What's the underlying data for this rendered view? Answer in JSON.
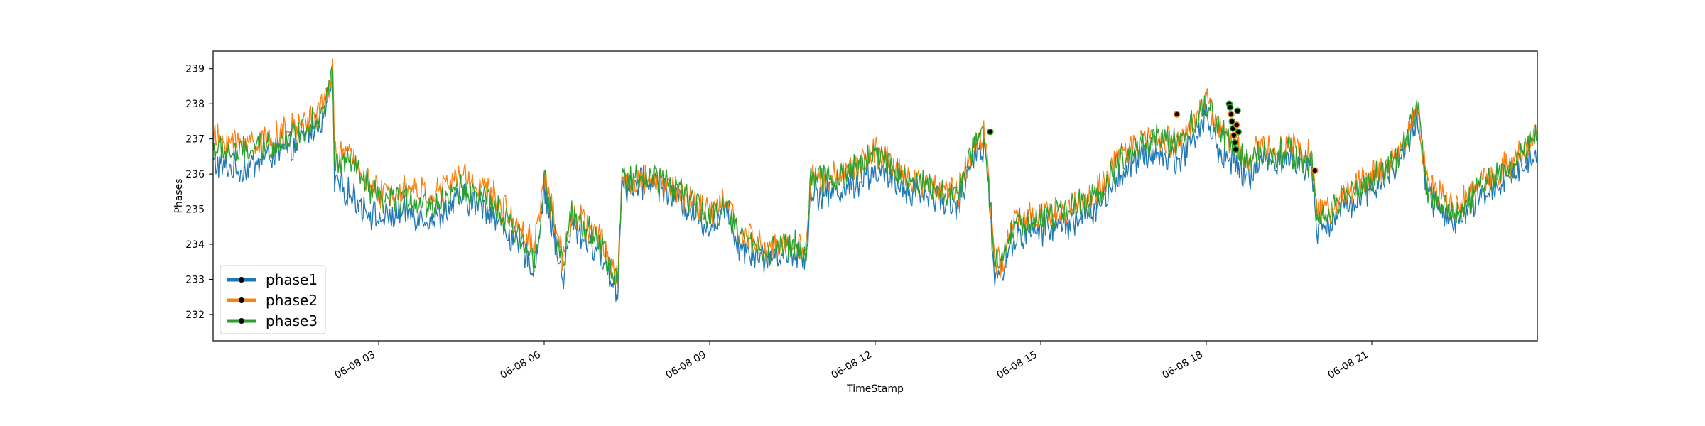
{
  "chart_data": {
    "type": "line",
    "xlabel": "TimeStamp",
    "ylabel": "Phases",
    "xlim": [
      "2023-06-08T00:00",
      "2023-06-09T00:00"
    ],
    "ylim": [
      231.25,
      239.5
    ],
    "yticks": [
      232,
      233,
      234,
      235,
      236,
      237,
      238,
      239
    ],
    "xticks": [
      {
        "t": "2023-06-08T03:00",
        "label": "06-08 03"
      },
      {
        "t": "2023-06-08T06:00",
        "label": "06-08 06"
      },
      {
        "t": "2023-06-08T09:00",
        "label": "06-08 09"
      },
      {
        "t": "2023-06-08T12:00",
        "label": "06-08 12"
      },
      {
        "t": "2023-06-08T15:00",
        "label": "06-08 15"
      },
      {
        "t": "2023-06-08T18:00",
        "label": "06-08 18"
      },
      {
        "t": "2023-06-08T21:00",
        "label": "06-08 21"
      }
    ],
    "grid": false,
    "legend_position": "lower-left",
    "series": [
      {
        "name": "phase1",
        "color": "#1f77b4",
        "x": [
          "00:00",
          "00:30",
          "01:00",
          "01:30",
          "02:00",
          "02:10",
          "02:12",
          "02:30",
          "03:00",
          "03:30",
          "04:00",
          "04:30",
          "05:00",
          "05:30",
          "05:50",
          "06:00",
          "06:20",
          "06:30",
          "07:00",
          "07:20",
          "07:25",
          "07:30",
          "08:00",
          "08:30",
          "09:00",
          "09:20",
          "09:30",
          "10:00",
          "10:30",
          "10:45",
          "10:50",
          "11:00",
          "11:30",
          "12:00",
          "12:30",
          "13:00",
          "13:30",
          "13:50",
          "14:00",
          "14:10",
          "14:20",
          "14:30",
          "15:00",
          "15:30",
          "16:00",
          "16:30",
          "17:00",
          "17:30",
          "18:00",
          "18:15",
          "18:30",
          "18:45",
          "19:00",
          "19:30",
          "19:55",
          "20:00",
          "20:15",
          "20:30",
          "21:00",
          "21:30",
          "21:50",
          "22:00",
          "22:30",
          "23:00",
          "23:30",
          "23:59"
        ],
        "y": [
          236.3,
          236.1,
          236.5,
          236.8,
          237.6,
          238.7,
          235.8,
          235.4,
          234.7,
          234.9,
          234.7,
          235.3,
          235.0,
          234.0,
          233.3,
          235.6,
          233.0,
          234.5,
          233.8,
          232.6,
          236.0,
          235.6,
          235.8,
          235.2,
          234.5,
          235.0,
          234.0,
          233.6,
          233.8,
          233.6,
          235.6,
          235.4,
          235.6,
          236.1,
          235.6,
          235.4,
          235.1,
          236.6,
          236.8,
          233.1,
          233.3,
          234.2,
          234.4,
          234.6,
          235.0,
          236.1,
          236.6,
          236.4,
          237.6,
          236.6,
          236.3,
          235.9,
          236.4,
          236.4,
          236.1,
          234.5,
          234.6,
          235.1,
          235.6,
          236.3,
          237.6,
          235.4,
          234.5,
          235.4,
          235.9,
          236.6
        ]
      },
      {
        "name": "phase2",
        "color": "#ff7f0e",
        "x": [
          "00:00",
          "00:30",
          "01:00",
          "01:30",
          "02:00",
          "02:10",
          "02:12",
          "02:30",
          "03:00",
          "03:30",
          "04:00",
          "04:30",
          "05:00",
          "05:30",
          "05:50",
          "06:00",
          "06:20",
          "06:30",
          "07:00",
          "07:20",
          "07:25",
          "07:30",
          "08:00",
          "08:30",
          "09:00",
          "09:20",
          "09:30",
          "10:00",
          "10:30",
          "10:45",
          "10:50",
          "11:00",
          "11:30",
          "12:00",
          "12:30",
          "13:00",
          "13:30",
          "13:50",
          "14:00",
          "14:10",
          "14:20",
          "14:30",
          "15:00",
          "15:30",
          "16:00",
          "16:30",
          "17:00",
          "17:30",
          "18:00",
          "18:15",
          "18:30",
          "18:45",
          "19:00",
          "19:30",
          "19:55",
          "20:00",
          "20:15",
          "20:30",
          "21:00",
          "21:30",
          "21:50",
          "22:00",
          "22:30",
          "23:00",
          "23:30",
          "23:59"
        ],
        "y": [
          237.0,
          236.9,
          237.0,
          237.3,
          237.9,
          239.0,
          236.6,
          236.5,
          235.4,
          235.6,
          235.4,
          236.0,
          235.5,
          234.6,
          234.0,
          236.0,
          233.6,
          234.9,
          234.2,
          233.0,
          236.1,
          235.7,
          235.9,
          235.4,
          234.9,
          235.3,
          234.4,
          233.9,
          234.0,
          233.9,
          236.0,
          235.8,
          236.1,
          236.6,
          236.0,
          235.7,
          235.5,
          237.0,
          237.2,
          233.4,
          233.6,
          234.6,
          234.8,
          235.0,
          235.4,
          236.6,
          237.1,
          236.9,
          238.1,
          237.3,
          236.9,
          236.4,
          236.8,
          236.8,
          236.5,
          234.9,
          235.0,
          235.5,
          235.9,
          236.6,
          237.9,
          235.8,
          234.9,
          235.8,
          236.3,
          237.1
        ]
      },
      {
        "name": "phase3",
        "color": "#2ca02c",
        "x": [
          "00:00",
          "00:30",
          "01:00",
          "01:30",
          "02:00",
          "02:10",
          "02:12",
          "02:30",
          "03:00",
          "03:30",
          "04:00",
          "04:30",
          "05:00",
          "05:30",
          "05:50",
          "06:00",
          "06:20",
          "06:30",
          "07:00",
          "07:20",
          "07:25",
          "07:30",
          "08:00",
          "08:30",
          "09:00",
          "09:20",
          "09:30",
          "10:00",
          "10:30",
          "10:45",
          "10:50",
          "11:00",
          "11:30",
          "12:00",
          "12:30",
          "13:00",
          "13:30",
          "13:50",
          "14:00",
          "14:10",
          "14:20",
          "14:30",
          "15:00",
          "15:30",
          "16:00",
          "16:30",
          "17:00",
          "17:30",
          "18:00",
          "18:15",
          "18:30",
          "18:45",
          "19:00",
          "19:30",
          "19:55",
          "20:00",
          "20:15",
          "20:30",
          "21:00",
          "21:30",
          "21:50",
          "22:00",
          "22:30",
          "23:00",
          "23:30",
          "23:59"
        ],
        "y": [
          236.7,
          236.6,
          236.8,
          237.1,
          237.8,
          238.9,
          236.3,
          236.3,
          235.2,
          235.3,
          235.1,
          235.6,
          235.2,
          234.3,
          233.6,
          235.8,
          233.4,
          234.8,
          234.1,
          232.8,
          236.1,
          235.8,
          236.0,
          235.5,
          234.7,
          235.2,
          234.3,
          233.8,
          234.0,
          233.8,
          236.0,
          235.8,
          236.0,
          236.6,
          236.0,
          235.6,
          235.4,
          237.0,
          237.1,
          233.4,
          233.7,
          234.6,
          234.7,
          235.0,
          235.3,
          236.5,
          237.0,
          236.8,
          238.0,
          237.2,
          236.8,
          236.3,
          236.6,
          236.6,
          236.3,
          234.8,
          234.9,
          235.4,
          235.8,
          236.5,
          237.9,
          235.6,
          234.8,
          235.7,
          236.2,
          237.1
        ]
      }
    ],
    "markers": {
      "x": [
        "14:05",
        "17:28",
        "18:25",
        "18:26",
        "18:27",
        "18:28",
        "18:29",
        "18:30",
        "18:31",
        "18:32",
        "18:33",
        "18:34",
        "18:35",
        "19:58"
      ],
      "y": [
        237.2,
        237.7,
        238.0,
        237.9,
        237.7,
        237.5,
        237.3,
        237.1,
        236.9,
        236.7,
        237.4,
        237.8,
        237.2,
        236.1
      ]
    }
  }
}
